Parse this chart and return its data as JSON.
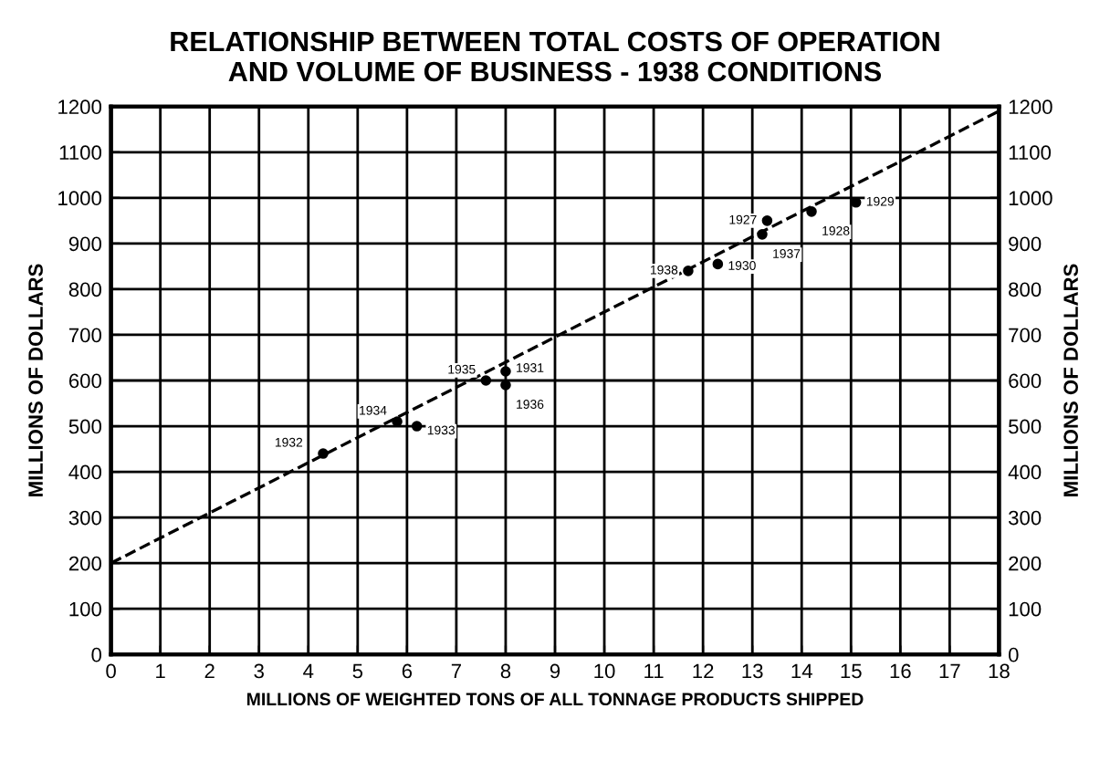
{
  "chart_data": {
    "type": "scatter",
    "title": "RELATIONSHIP BETWEEN TOTAL COSTS OF OPERATION\nAND VOLUME OF BUSINESS - 1938 CONDITIONS",
    "xlabel": "MILLIONS OF WEIGHTED TONS OF ALL TONNAGE PRODUCTS SHIPPED",
    "ylabel": "MILLIONS OF DOLLARS",
    "y2label": "MILLIONS OF DOLLARS",
    "xlim": [
      0,
      18
    ],
    "xticks": [
      0,
      1,
      2,
      3,
      4,
      5,
      6,
      7,
      8,
      9,
      10,
      11,
      12,
      13,
      14,
      15,
      16,
      17,
      18
    ],
    "ylim": [
      0,
      1200
    ],
    "yticks": [
      0,
      100,
      200,
      300,
      400,
      500,
      600,
      700,
      800,
      900,
      1000,
      1100,
      1200
    ],
    "y2lim": [
      0,
      1200
    ],
    "y2ticks": [
      0,
      100,
      200,
      300,
      400,
      500,
      600,
      700,
      800,
      900,
      1000,
      1100,
      1200
    ],
    "grid": true,
    "legend": false,
    "marker": "circle",
    "series": [
      {
        "color": "#000000",
        "x": [
          4.3,
          5.8,
          6.2,
          7.6,
          8.0,
          8.0,
          11.7,
          12.3,
          13.2,
          13.3,
          14.2,
          15.1
        ],
        "values": [
          440,
          510,
          500,
          600,
          590,
          620,
          840,
          855,
          920,
          950,
          970,
          990
        ]
      },
      {
        "type": "line",
        "color": "#000000",
        "line_style": "dashed",
        "marker": "none",
        "x": [
          0,
          18
        ],
        "values": [
          200,
          1190
        ]
      }
    ],
    "annotations": [
      {
        "text": "1932",
        "x": 4.3,
        "y": 440
      },
      {
        "text": "1934",
        "x": 5.8,
        "y": 510
      },
      {
        "text": "1933",
        "x": 6.2,
        "y": 500
      },
      {
        "text": "1935",
        "x": 7.6,
        "y": 600
      },
      {
        "text": "1936",
        "x": 8.0,
        "y": 590
      },
      {
        "text": "1931",
        "x": 8.0,
        "y": 620
      },
      {
        "text": "1938",
        "x": 11.7,
        "y": 840
      },
      {
        "text": "1930",
        "x": 12.3,
        "y": 855
      },
      {
        "text": "1937",
        "x": 13.2,
        "y": 920
      },
      {
        "text": "1927",
        "x": 13.3,
        "y": 950
      },
      {
        "text": "1928",
        "x": 14.2,
        "y": 970
      },
      {
        "text": "1929",
        "x": 15.1,
        "y": 990
      }
    ]
  }
}
